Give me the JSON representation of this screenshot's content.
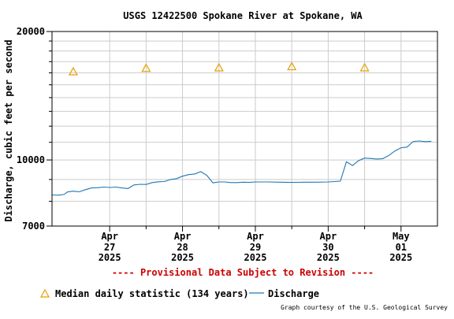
{
  "chart_data": {
    "type": "line",
    "title": "USGS 12422500 Spokane River at Spokane, WA",
    "ylabel": "Discharge, cubic feet per second",
    "xlabel": "",
    "ylim": [
      7000,
      20000
    ],
    "y_scale": "log",
    "y_ticks": [
      {
        "value": 7000,
        "label": "7000"
      },
      {
        "value": 10000,
        "label": "10000"
      },
      {
        "value": 20000,
        "label": "20000"
      }
    ],
    "y_minor_ticks": [
      8000,
      9000,
      11000,
      12000,
      13000,
      14000,
      15000,
      16000,
      17000,
      18000,
      19000
    ],
    "xlim": [
      "2025-04-26T05:00",
      "2025-05-01T12:00"
    ],
    "x_ticks": [
      {
        "t": "2025-04-27T00:00",
        "label_month": "Apr",
        "label_day": "27",
        "label_year": "2025"
      },
      {
        "t": "2025-04-28T00:00",
        "label_month": "Apr",
        "label_day": "28",
        "label_year": "2025"
      },
      {
        "t": "2025-04-29T00:00",
        "label_month": "Apr",
        "label_day": "29",
        "label_year": "2025"
      },
      {
        "t": "2025-04-30T00:00",
        "label_month": "Apr",
        "label_day": "30",
        "label_year": "2025"
      },
      {
        "t": "2025-05-01T00:00",
        "label_month": "May",
        "label_day": "01",
        "label_year": "2025"
      }
    ],
    "x_minor_ticks": [
      "2025-04-27T12:00",
      "2025-04-28T12:00",
      "2025-04-29T12:00",
      "2025-04-30T12:00"
    ],
    "grid": true,
    "series": [
      {
        "name": "Discharge",
        "color": "#1f77b4",
        "points": [
          [
            "2025-04-26T05:00",
            8280
          ],
          [
            "2025-04-26T07:00",
            8270
          ],
          [
            "2025-04-26T09:00",
            8300
          ],
          [
            "2025-04-26T10:00",
            8410
          ],
          [
            "2025-04-26T12:00",
            8450
          ],
          [
            "2025-04-26T14:00",
            8420
          ],
          [
            "2025-04-26T16:00",
            8520
          ],
          [
            "2025-04-26T18:00",
            8600
          ],
          [
            "2025-04-26T20:00",
            8610
          ],
          [
            "2025-04-26T22:00",
            8640
          ],
          [
            "2025-04-27T00:00",
            8620
          ],
          [
            "2025-04-27T02:00",
            8640
          ],
          [
            "2025-04-27T04:00",
            8600
          ],
          [
            "2025-04-27T06:00",
            8570
          ],
          [
            "2025-04-27T08:00",
            8740
          ],
          [
            "2025-04-27T10:00",
            8770
          ],
          [
            "2025-04-27T12:00",
            8760
          ],
          [
            "2025-04-27T14:00",
            8850
          ],
          [
            "2025-04-27T16:00",
            8890
          ],
          [
            "2025-04-27T18:00",
            8900
          ],
          [
            "2025-04-27T20:00",
            9000
          ],
          [
            "2025-04-27T22:00",
            9040
          ],
          [
            "2025-04-28T00:00",
            9160
          ],
          [
            "2025-04-28T02:00",
            9240
          ],
          [
            "2025-04-28T04:00",
            9270
          ],
          [
            "2025-04-28T06:00",
            9390
          ],
          [
            "2025-04-28T08:00",
            9200
          ],
          [
            "2025-04-28T10:00",
            8840
          ],
          [
            "2025-04-28T12:00",
            8880
          ],
          [
            "2025-04-28T14:00",
            8880
          ],
          [
            "2025-04-28T16:00",
            8850
          ],
          [
            "2025-04-28T18:00",
            8850
          ],
          [
            "2025-04-28T20:00",
            8870
          ],
          [
            "2025-04-28T22:00",
            8860
          ],
          [
            "2025-04-29T00:00",
            8880
          ],
          [
            "2025-04-29T04:00",
            8880
          ],
          [
            "2025-04-29T08:00",
            8870
          ],
          [
            "2025-04-29T12:00",
            8860
          ],
          [
            "2025-04-29T16:00",
            8870
          ],
          [
            "2025-04-29T20:00",
            8870
          ],
          [
            "2025-04-30T00:00",
            8880
          ],
          [
            "2025-04-30T04:00",
            8920
          ],
          [
            "2025-04-30T06:00",
            9900
          ],
          [
            "2025-04-30T08:00",
            9700
          ],
          [
            "2025-04-30T10:00",
            9960
          ],
          [
            "2025-04-30T12:00",
            10100
          ],
          [
            "2025-04-30T14:00",
            10080
          ],
          [
            "2025-04-30T16:00",
            10050
          ],
          [
            "2025-04-30T18:00",
            10070
          ],
          [
            "2025-04-30T20:00",
            10250
          ],
          [
            "2025-04-30T22:00",
            10500
          ],
          [
            "2025-05-01T00:00",
            10680
          ],
          [
            "2025-05-01T02:00",
            10720
          ],
          [
            "2025-05-01T04:00",
            11050
          ],
          [
            "2025-05-01T06:00",
            11080
          ],
          [
            "2025-05-01T08:00",
            11040
          ],
          [
            "2025-05-01T10:00",
            11060
          ]
        ]
      },
      {
        "name": "Median daily statistic (134 years)",
        "marker": "triangle",
        "color": "#e69f00",
        "points": [
          [
            "2025-04-26T12:00",
            16100
          ],
          [
            "2025-04-27T12:00",
            16400
          ],
          [
            "2025-04-28T12:00",
            16450
          ],
          [
            "2025-04-29T12:00",
            16550
          ],
          [
            "2025-04-30T12:00",
            16450
          ]
        ]
      }
    ],
    "legend": {
      "placement": "bottom-left"
    },
    "annotation": "---- Provisional Data Subject to Revision ----",
    "credit": "Graph courtesy of the U.S. Geological Survey",
    "colors": {
      "grid": "#cccccc",
      "axis": "#000000",
      "annotation": "#cc0000"
    }
  }
}
